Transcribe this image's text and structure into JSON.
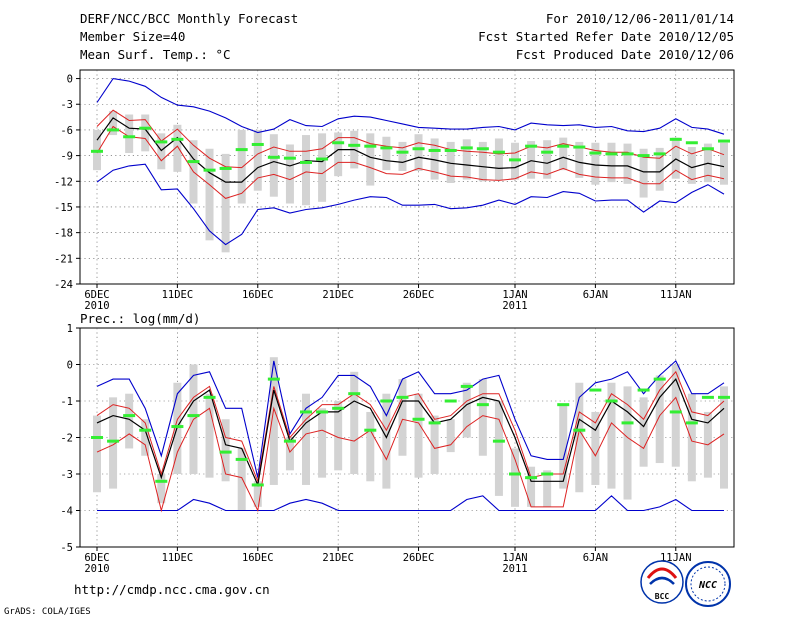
{
  "header": {
    "title": "DERF/NCC/BCC Monthly Forecast",
    "member_size": "Member Size=40",
    "variable": "Mean Surf. Temp.: °C",
    "period": "For 2010/12/06-2011/01/14",
    "started": "Fcst Started Refer Date 2010/12/05",
    "produced": "Fcst Produced Date 2010/12/06"
  },
  "footer": {
    "url": "http://cmdp.ncc.cma.gov.cn",
    "grads": "GrADS: COLA/IGES",
    "bcc_logo": "BCC",
    "ncc_logo": "NCC"
  },
  "colors": {
    "box": "#d3d3d3",
    "median": "#33ee33",
    "mean": "#000000",
    "spread": "#dd2222",
    "extreme": "#0000cc"
  },
  "x_labels": [
    {
      "day": 0,
      "label": "6DEC",
      "sub": "2010"
    },
    {
      "day": 5,
      "label": "11DEC",
      "sub": ""
    },
    {
      "day": 10,
      "label": "16DEC",
      "sub": ""
    },
    {
      "day": 15,
      "label": "21DEC",
      "sub": ""
    },
    {
      "day": 20,
      "label": "26DEC",
      "sub": ""
    },
    {
      "day": 26,
      "label": "1JAN",
      "sub": "2011"
    },
    {
      "day": 31,
      "label": "6JAN",
      "sub": ""
    },
    {
      "day": 36,
      "label": "11JAN",
      "sub": ""
    }
  ],
  "chart_data": [
    {
      "type": "line",
      "title": "Mean Surf. Temp.: °C",
      "x": [
        0,
        1,
        2,
        3,
        4,
        5,
        6,
        7,
        8,
        9,
        10,
        11,
        12,
        13,
        14,
        15,
        16,
        17,
        18,
        19,
        20,
        21,
        22,
        23,
        24,
        25,
        26,
        27,
        28,
        29,
        30,
        31,
        32,
        33,
        34,
        35,
        36,
        37,
        38,
        39
      ],
      "ylim": [
        -24,
        1
      ],
      "yticks": [
        -24,
        -21,
        -18,
        -15,
        -12,
        -9,
        -6,
        -3,
        0
      ],
      "series": [
        {
          "name": "upper_extreme",
          "values": [
            -2.8,
            0,
            -0.3,
            -0.9,
            -2.2,
            -3.1,
            -3.3,
            -3.8,
            -4.6,
            -5.6,
            -6.3,
            -5.9,
            -4.8,
            -5.5,
            -5.6,
            -4.7,
            -4.4,
            -4.5,
            -4.9,
            -5.3,
            -5.7,
            -5.8,
            -5.9,
            -5.9,
            -5.7,
            -5.6,
            -6.0,
            -5.2,
            -5.4,
            -5.5,
            -5.4,
            -5.7,
            -5.6,
            -6.1,
            -6.2,
            -5.8,
            -4.7,
            -5.7,
            -5.9,
            -6.5
          ]
        },
        {
          "name": "upper_spread",
          "values": [
            -5.6,
            -3.7,
            -4.9,
            -4.8,
            -7.3,
            -5.9,
            -7.8,
            -9.3,
            -10.3,
            -10.4,
            -8.8,
            -8.0,
            -8.5,
            -8.5,
            -8.2,
            -6.9,
            -6.9,
            -7.6,
            -7.9,
            -8.1,
            -7.5,
            -7.8,
            -8.3,
            -8.5,
            -8.6,
            -8.8,
            -8.7,
            -7.9,
            -8.1,
            -7.6,
            -8.0,
            -8.4,
            -8.6,
            -8.6,
            -9.2,
            -9.3,
            -7.9,
            -8.8,
            -8.2,
            -8.9
          ]
        },
        {
          "name": "mean",
          "values": [
            -7.2,
            -4.6,
            -5.8,
            -5.9,
            -8.4,
            -6.9,
            -9.4,
            -11.0,
            -12.1,
            -12.1,
            -10.4,
            -9.7,
            -10.2,
            -9.6,
            -9.7,
            -8.3,
            -8.3,
            -9.2,
            -9.6,
            -9.8,
            -9.2,
            -9.5,
            -9.9,
            -10.1,
            -10.3,
            -10.5,
            -10.4,
            -9.6,
            -9.9,
            -9.2,
            -9.8,
            -10.1,
            -10.2,
            -10.2,
            -10.9,
            -10.9,
            -9.4,
            -10.4,
            -9.9,
            -10.3
          ]
        },
        {
          "name": "lower_spread",
          "values": [
            -8.7,
            -5.6,
            -6.8,
            -7.0,
            -9.6,
            -7.9,
            -10.9,
            -12.4,
            -14.0,
            -13.4,
            -11.6,
            -11.2,
            -11.8,
            -10.9,
            -11.1,
            -9.8,
            -9.8,
            -10.4,
            -11.1,
            -11.2,
            -10.5,
            -10.9,
            -11.4,
            -11.5,
            -11.8,
            -11.9,
            -11.7,
            -10.9,
            -11.2,
            -10.5,
            -11.2,
            -11.5,
            -11.6,
            -11.6,
            -12.3,
            -12.3,
            -10.7,
            -11.8,
            -11.3,
            -11.7
          ]
        },
        {
          "name": "lower_extreme",
          "values": [
            -12.1,
            -10.7,
            -10.2,
            -10.0,
            -13.0,
            -12.9,
            -15.2,
            -17.8,
            -19.4,
            -18.2,
            -15.3,
            -15.1,
            -15.7,
            -15.3,
            -15.1,
            -14.7,
            -14.2,
            -13.8,
            -13.9,
            -14.8,
            -14.8,
            -14.7,
            -15.2,
            -15.1,
            -14.8,
            -14.2,
            -14.7,
            -13.8,
            -13.9,
            -13.2,
            -13.4,
            -14.3,
            -14.2,
            -14.2,
            -15.6,
            -14.3,
            -14.5,
            -13.3,
            -12.4,
            -13.5
          ]
        },
        {
          "name": "median",
          "values": [
            -8.5,
            -6.0,
            -6.8,
            -5.8,
            -7.4,
            -7.1,
            -9.7,
            -10.7,
            -10.5,
            -8.3,
            -7.7,
            -9.2,
            -9.3,
            -9.8,
            -9.4,
            -7.5,
            -7.8,
            -7.9,
            -8.1,
            -8.6,
            -8.2,
            -8.4,
            -8.4,
            -8.1,
            -8.2,
            -8.6,
            -9.5,
            -7.9,
            -8.6,
            -7.9,
            -8.0,
            -8.7,
            -8.8,
            -8.8,
            -9.0,
            -8.8,
            -7.1,
            -7.5,
            -8.2,
            -7.3
          ]
        },
        {
          "name": "box_top",
          "values": [
            -6.0,
            -3.8,
            -4.2,
            -4.2,
            -6.4,
            -5.4,
            -7.2,
            -8.2,
            -8.8,
            -6.0,
            -6.0,
            -6.5,
            -7.7,
            -6.6,
            -6.4,
            -6.3,
            -6.1,
            -6.4,
            -6.8,
            -7.4,
            -6.5,
            -7.0,
            -7.4,
            -7.1,
            -7.4,
            -7.0,
            -7.5,
            -7.3,
            -7.2,
            -6.9,
            -7.4,
            -7.5,
            -7.5,
            -7.6,
            -8.2,
            -8.1,
            -6.9,
            -8.0,
            -7.6,
            -7.5
          ]
        },
        {
          "name": "box_bottom",
          "values": [
            -10.7,
            -6.6,
            -8.7,
            -8.5,
            -10.6,
            -10.9,
            -14.6,
            -18.9,
            -20.3,
            -14.6,
            -13.1,
            -13.8,
            -14.6,
            -14.8,
            -14.4,
            -11.4,
            -10.5,
            -12.5,
            -10.7,
            -10.8,
            -10.8,
            -11.8,
            -12.2,
            -11.8,
            -12.0,
            -11.9,
            -11.8,
            -11.7,
            -11.7,
            -10.7,
            -11.6,
            -12.4,
            -12.1,
            -12.3,
            -13.9,
            -13.1,
            -11.7,
            -12.3,
            -12.1,
            -12.4
          ]
        }
      ]
    },
    {
      "type": "line",
      "title": "Prec.: log(mm/d)",
      "x": [
        0,
        1,
        2,
        3,
        4,
        5,
        6,
        7,
        8,
        9,
        10,
        11,
        12,
        13,
        14,
        15,
        16,
        17,
        18,
        19,
        20,
        21,
        22,
        23,
        24,
        25,
        26,
        27,
        28,
        29,
        30,
        31,
        32,
        33,
        34,
        35,
        36,
        37,
        38,
        39
      ],
      "ylim": [
        -5,
        1
      ],
      "yticks": [
        -5,
        -4,
        -3,
        -2,
        -1,
        0,
        1
      ],
      "series": [
        {
          "name": "upper_extreme",
          "values": [
            -0.6,
            -0.4,
            -0.4,
            -1.2,
            -2.5,
            -0.8,
            -0.3,
            -0.2,
            -1.2,
            -1.2,
            -3.1,
            0.1,
            -1.9,
            -1.2,
            -0.9,
            -0.3,
            -0.3,
            -0.6,
            -1.4,
            -0.4,
            -0.2,
            -0.8,
            -0.8,
            -0.7,
            -0.4,
            -0.3,
            -1.5,
            -2.5,
            -2.6,
            -2.6,
            -0.9,
            -0.5,
            -0.4,
            -0.2,
            -0.8,
            -0.3,
            0.1,
            -0.8,
            -0.8,
            -0.5
          ]
        },
        {
          "name": "upper_spread",
          "values": [
            -1.4,
            -1.1,
            -1.2,
            -1.6,
            -3.0,
            -1.5,
            -0.9,
            -0.6,
            -2.0,
            -2.1,
            -3.2,
            -0.6,
            -2.0,
            -1.5,
            -1.1,
            -1.1,
            -0.8,
            -1.1,
            -1.8,
            -0.9,
            -0.8,
            -1.5,
            -1.4,
            -1.0,
            -0.8,
            -0.8,
            -1.8,
            -3.1,
            -3.0,
            -3.0,
            -1.3,
            -1.6,
            -0.8,
            -1.1,
            -1.5,
            -0.7,
            -0.2,
            -1.3,
            -1.4,
            -1.0
          ]
        },
        {
          "name": "mean",
          "values": [
            -1.6,
            -1.4,
            -1.5,
            -1.8,
            -3.1,
            -1.7,
            -1.0,
            -0.7,
            -2.2,
            -2.3,
            -3.3,
            -0.7,
            -2.1,
            -1.6,
            -1.3,
            -1.3,
            -1.0,
            -1.2,
            -2.0,
            -1.0,
            -1.0,
            -1.6,
            -1.5,
            -1.1,
            -0.9,
            -1.0,
            -2.0,
            -3.2,
            -3.2,
            -3.2,
            -1.5,
            -1.8,
            -1.0,
            -1.3,
            -1.7,
            -0.9,
            -0.4,
            -1.5,
            -1.6,
            -1.2
          ]
        },
        {
          "name": "lower_spread",
          "values": [
            -2.4,
            -2.2,
            -1.9,
            -2.2,
            -4.0,
            -2.4,
            -1.5,
            -1.2,
            -3.0,
            -3.1,
            -4.0,
            -1.2,
            -2.4,
            -1.9,
            -1.8,
            -2.0,
            -2.1,
            -1.8,
            -2.6,
            -1.5,
            -1.6,
            -2.3,
            -2.2,
            -1.7,
            -1.4,
            -1.5,
            -2.6,
            -3.9,
            -3.9,
            -3.9,
            -1.8,
            -2.5,
            -1.6,
            -2.0,
            -2.3,
            -1.4,
            -0.9,
            -2.1,
            -2.2,
            -1.9
          ]
        },
        {
          "name": "lower_extreme",
          "values": [
            -4.0,
            -4.0,
            -4.0,
            -4.0,
            -4.0,
            -4.0,
            -3.7,
            -3.8,
            -4.0,
            -4.0,
            -4.0,
            -4.0,
            -3.8,
            -3.7,
            -3.8,
            -4.0,
            -4.0,
            -4.0,
            -4.0,
            -4.0,
            -4.0,
            -4.0,
            -4.0,
            -3.7,
            -3.6,
            -4.0,
            -4.0,
            -4.0,
            -4.0,
            -4.0,
            -4.0,
            -4.0,
            -3.6,
            -4.0,
            -4.0,
            -3.9,
            -3.7,
            -4.0,
            -4.0,
            -4.0
          ]
        },
        {
          "name": "median",
          "values": [
            -2.0,
            -2.1,
            -1.4,
            -1.8,
            -3.2,
            -1.7,
            -1.4,
            -0.9,
            -2.4,
            -2.6,
            -3.3,
            -0.4,
            -2.1,
            -1.3,
            -1.3,
            -1.2,
            -0.8,
            -1.8,
            -1.0,
            -0.9,
            -1.5,
            -1.6,
            -1.0,
            -0.6,
            -1.1,
            -2.1,
            -3.0,
            -3.1,
            -3.0,
            -1.1,
            -1.8,
            -0.7,
            -1.0,
            -1.6,
            -0.7,
            -0.4,
            -1.3,
            -1.6,
            -0.9,
            -0.9
          ]
        },
        {
          "name": "box_top",
          "values": [
            -1.4,
            -0.9,
            -0.8,
            -1.5,
            -3.0,
            -0.5,
            0.0,
            -0.8,
            -1.5,
            -2.3,
            -3.2,
            0.2,
            -2.0,
            -0.8,
            -1.2,
            -1.0,
            -0.2,
            -1.3,
            -0.8,
            -0.4,
            -0.8,
            -1.4,
            -1.5,
            -0.5,
            -0.4,
            -1.0,
            -2.3,
            -2.8,
            -2.9,
            -1.1,
            -0.5,
            -1.3,
            -0.5,
            -0.6,
            -0.9,
            -0.3,
            0.0,
            -0.8,
            -1.3,
            -0.6
          ]
        },
        {
          "name": "box_bottom",
          "values": [
            -3.5,
            -3.4,
            -2.3,
            -2.5,
            -3.8,
            -3.0,
            -3.0,
            -3.1,
            -3.2,
            -4.0,
            -3.9,
            -3.3,
            -2.9,
            -3.3,
            -3.1,
            -2.9,
            -3.0,
            -3.2,
            -3.4,
            -2.5,
            -3.1,
            -3.0,
            -2.4,
            -2.0,
            -2.5,
            -3.6,
            -3.9,
            -3.9,
            -3.9,
            -3.4,
            -3.5,
            -3.3,
            -3.4,
            -3.7,
            -2.8,
            -2.7,
            -2.8,
            -3.2,
            -3.1,
            -3.4
          ]
        }
      ]
    }
  ]
}
